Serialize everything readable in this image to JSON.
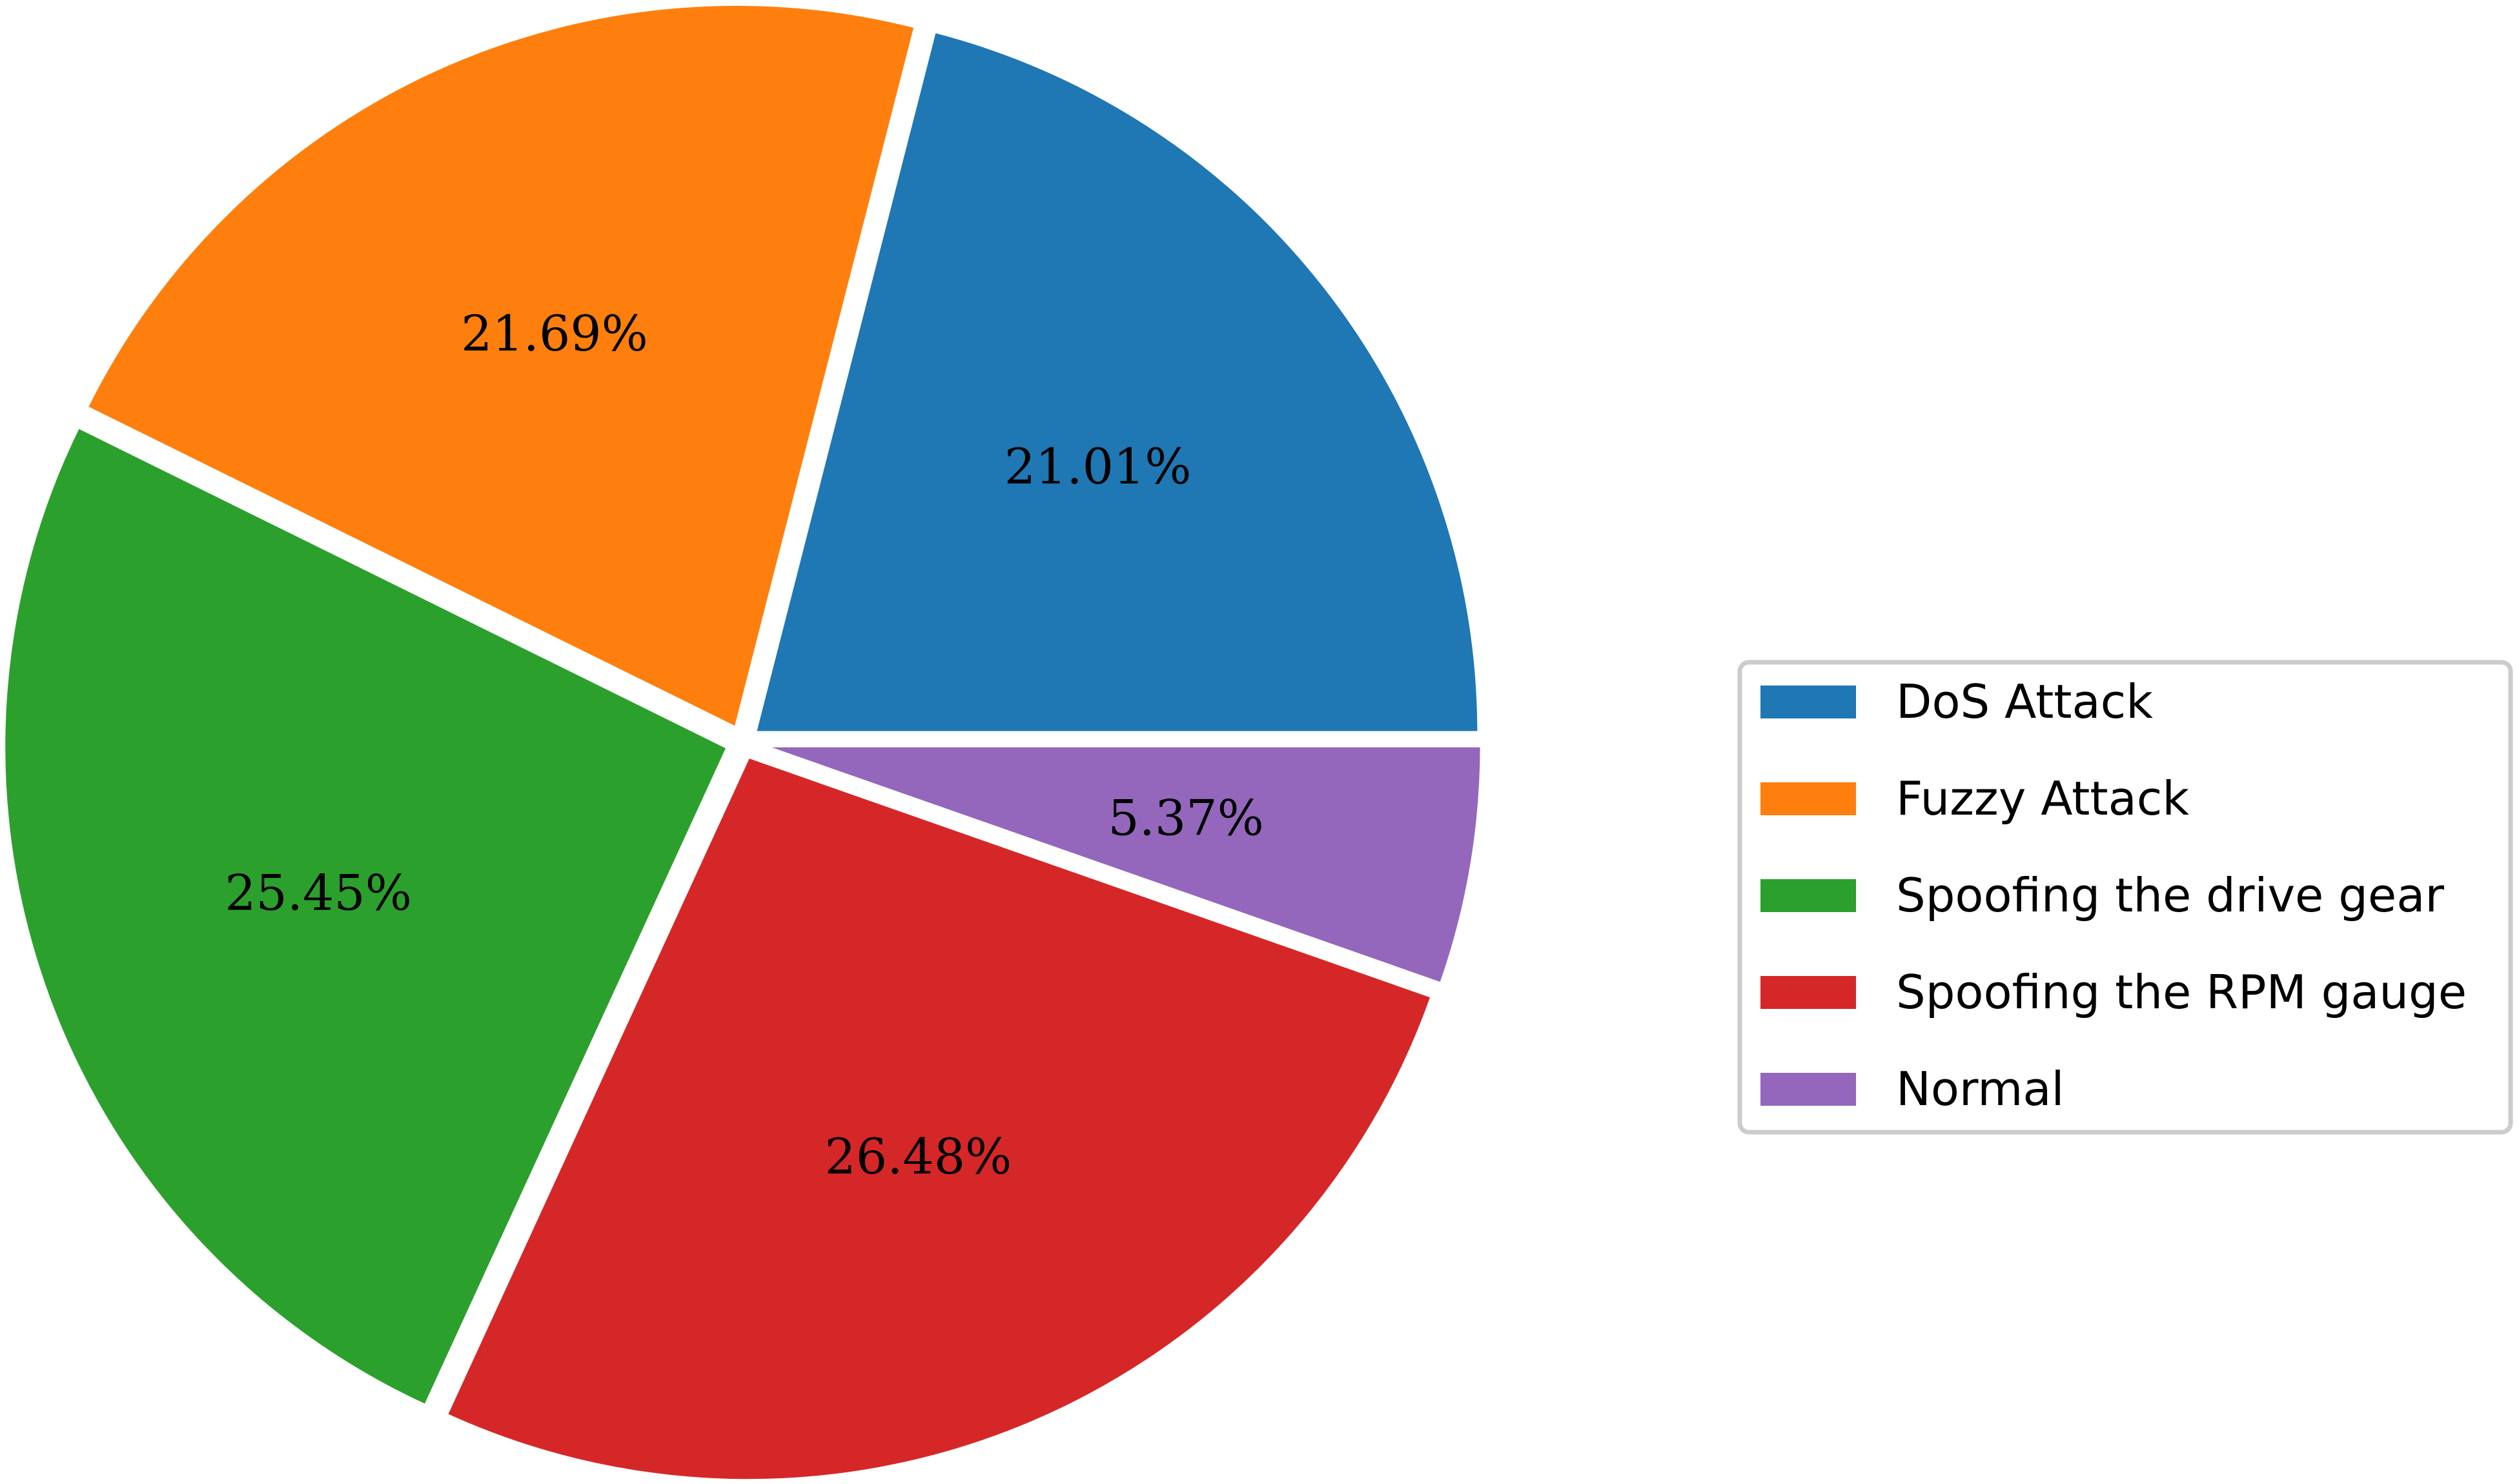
{
  "chart_data": {
    "type": "pie",
    "title": "",
    "labels": [
      "DoS Attack",
      "Fuzzy Attack",
      "Spoofing the drive gear",
      "Spoofing the RPM gauge",
      "Normal"
    ],
    "values": [
      21.01,
      21.69,
      25.45,
      26.48,
      5.37
    ],
    "value_labels": [
      "21.01%",
      "21.69%",
      "25.45%",
      "26.48%",
      "5.37%"
    ],
    "colors": [
      "#1f77b4",
      "#ff7f0e",
      "#2ca02c",
      "#d62728",
      "#9467bd"
    ],
    "start_angle": 0,
    "direction": "counterclockwise",
    "exploded": true,
    "legend_position": "right"
  }
}
